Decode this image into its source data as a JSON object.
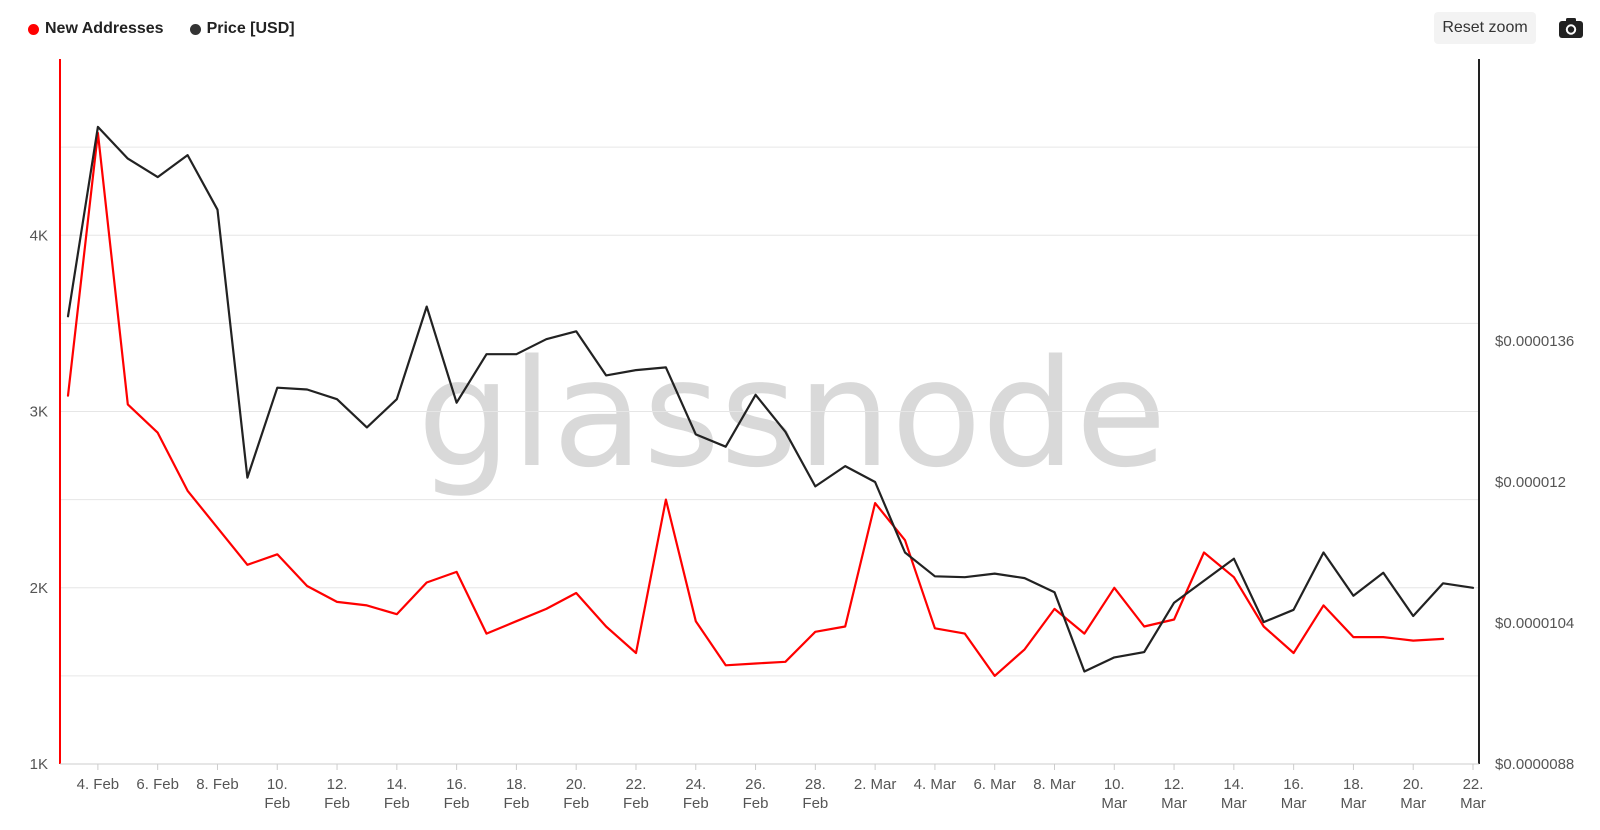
{
  "legend": {
    "series1": {
      "label": "New Addresses",
      "color": "#ff0000"
    },
    "series2": {
      "label": "Price [USD]",
      "color": "#333333"
    }
  },
  "toolbar": {
    "reset_zoom": "Reset zoom",
    "camera_icon": "camera-icon"
  },
  "watermark": "glassnode",
  "chart_data": {
    "type": "line",
    "title": "",
    "x": [
      "3 Feb",
      "4 Feb",
      "5 Feb",
      "6 Feb",
      "7 Feb",
      "8 Feb",
      "9 Feb",
      "10 Feb",
      "11 Feb",
      "12 Feb",
      "13 Feb",
      "14 Feb",
      "15 Feb",
      "16 Feb",
      "17 Feb",
      "18 Feb",
      "19 Feb",
      "20 Feb",
      "21 Feb",
      "22 Feb",
      "23 Feb",
      "24 Feb",
      "25 Feb",
      "26 Feb",
      "27 Feb",
      "28 Feb",
      "1 Mar",
      "2 Mar",
      "3 Mar",
      "4 Mar",
      "5 Mar",
      "6 Mar",
      "7 Mar",
      "8 Mar",
      "9 Mar",
      "10 Mar",
      "11 Mar",
      "12 Mar",
      "13 Mar",
      "14 Mar",
      "15 Mar",
      "16 Mar",
      "17 Mar",
      "18 Mar",
      "19 Mar",
      "20 Mar",
      "21 Mar",
      "22 Mar"
    ],
    "x_tick_labels": [
      [
        "4. Feb"
      ],
      [
        "6. Feb"
      ],
      [
        "8. Feb"
      ],
      [
        "10.",
        "Feb"
      ],
      [
        "12.",
        "Feb"
      ],
      [
        "14.",
        "Feb"
      ],
      [
        "16.",
        "Feb"
      ],
      [
        "18.",
        "Feb"
      ],
      [
        "20.",
        "Feb"
      ],
      [
        "22.",
        "Feb"
      ],
      [
        "24.",
        "Feb"
      ],
      [
        "26.",
        "Feb"
      ],
      [
        "28.",
        "Feb"
      ],
      [
        "2. Mar"
      ],
      [
        "4. Mar"
      ],
      [
        "6. Mar"
      ],
      [
        "8. Mar"
      ],
      [
        "10.",
        "Mar"
      ],
      [
        "12.",
        "Mar"
      ],
      [
        "14.",
        "Mar"
      ],
      [
        "16.",
        "Mar"
      ],
      [
        "18.",
        "Mar"
      ],
      [
        "20.",
        "Mar"
      ],
      [
        "22.",
        "Mar"
      ]
    ],
    "y_left": {
      "ticks": [
        "1K",
        "2K",
        "3K",
        "4K"
      ],
      "tick_values": [
        1000,
        2000,
        3000,
        4000
      ],
      "range": [
        1000,
        5000
      ]
    },
    "y_right": {
      "ticks": [
        "$0.0000088",
        "$0.0000104",
        "$0.000012",
        "$0.0000136"
      ],
      "tick_values": [
        8.8e-06,
        1.04e-05,
        1.2e-05,
        1.36e-05
      ],
      "range": [
        8.8e-06,
        1.68e-05
      ]
    },
    "grid": true,
    "legend_position": "top-left",
    "series": [
      {
        "name": "New Addresses",
        "axis": "left",
        "color": "#ff0000",
        "values": [
          3090,
          4580,
          3040,
          2880,
          2550,
          2340,
          2130,
          2190,
          2010,
          1920,
          1900,
          1850,
          2030,
          2090,
          1740,
          1810,
          1880,
          1970,
          1780,
          1630,
          2500,
          1810,
          1560,
          1570,
          1580,
          1750,
          1780,
          2480,
          2270,
          1770,
          1740,
          1500,
          1650,
          1880,
          1740,
          2000,
          1780,
          1820,
          2200,
          2060,
          1780,
          1630,
          1900,
          1720,
          1720,
          1700,
          1710,
          null
        ]
      },
      {
        "name": "Price [USD]",
        "axis": "right",
        "color": "#222222",
        "values": [
          1.388e-05,
          1.603e-05,
          1.567e-05,
          1.546e-05,
          1.571e-05,
          1.509e-05,
          1.205e-05,
          1.307e-05,
          1.305e-05,
          1.294e-05,
          1.262e-05,
          1.294e-05,
          1.399e-05,
          1.29e-05,
          1.345e-05,
          1.345e-05,
          1.362e-05,
          1.371e-05,
          1.321e-05,
          1.327e-05,
          1.33e-05,
          1.254e-05,
          1.24e-05,
          1.299e-05,
          1.257e-05,
          1.195e-05,
          1.218e-05,
          1.2e-05,
          1.12e-05,
          1.093e-05,
          1.092e-05,
          1.096e-05,
          1.091e-05,
          1.075e-05,
          9.85e-06,
          1.001e-05,
          1.007e-05,
          1.063e-05,
          1.088e-05,
          1.113e-05,
          1.041e-05,
          1.055e-05,
          1.12e-05,
          1.071e-05,
          1.097e-05,
          1.048e-05,
          1.085e-05,
          1.08e-05
        ]
      }
    ]
  }
}
